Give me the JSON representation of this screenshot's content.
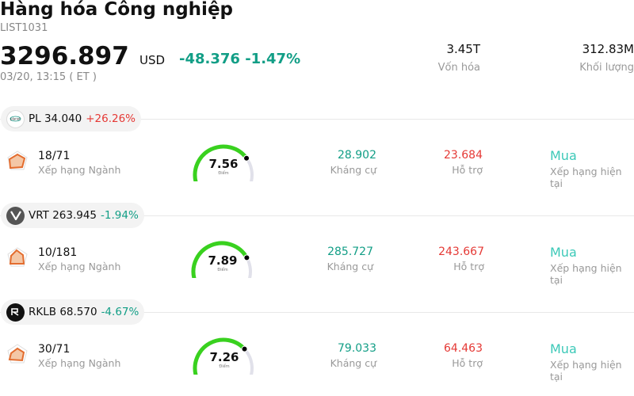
{
  "header": {
    "title": "Hàng hóa Công nghiệp",
    "code": "LIST1031",
    "price": "3296.897",
    "currency": "USD",
    "change": "-48.376 -1.47%",
    "timestamp": "03/20, 13:15  ( ET )",
    "market_cap_value": "3.45T",
    "market_cap_label": "Vốn hóa",
    "volume_value": "312.83M",
    "volume_label": "Khối lượng"
  },
  "colors": {
    "positive": "#e53935",
    "negative": "#129e86",
    "gauge_green": "#39d11f",
    "gauge_track": "#e1e1ea",
    "rating": "#3cc9b8"
  },
  "stocks": [
    {
      "ticker": "PL",
      "price": "34.040",
      "change_pct": "+26.26%",
      "direction": "up",
      "logo_icon": "planet-logo-icon",
      "rank": "18/71",
      "rank_label": "Xếp hạng Ngành",
      "score": "7.56",
      "score_label": "Điểm",
      "score_value": 7.56,
      "resistance": "28.902",
      "resistance_label": "Kháng cự",
      "support": "23.684",
      "support_label": "Hỗ trợ",
      "rating": "Mua",
      "rating_label": "Xếp hạng hiện tại"
    },
    {
      "ticker": "VRT",
      "price": "263.945",
      "change_pct": "-1.94%",
      "direction": "down",
      "logo_icon": "vertiv-logo-icon",
      "rank": "10/181",
      "rank_label": "Xếp hạng Ngành",
      "score": "7.89",
      "score_label": "Điểm",
      "score_value": 7.89,
      "resistance": "285.727",
      "resistance_label": "Kháng cự",
      "support": "243.667",
      "support_label": "Hỗ trợ",
      "rating": "Mua",
      "rating_label": "Xếp hạng hiện tại"
    },
    {
      "ticker": "RKLB",
      "price": "68.570",
      "change_pct": "-4.67%",
      "direction": "down",
      "logo_icon": "rocketlab-logo-icon",
      "rank": "30/71",
      "rank_label": "Xếp hạng Ngành",
      "score": "7.26",
      "score_label": "Điểm",
      "score_value": 7.26,
      "resistance": "79.033",
      "resistance_label": "Kháng cự",
      "support": "64.463",
      "support_label": "Hỗ trợ",
      "rating": "Mua",
      "rating_label": "Xếp hạng hiện tại"
    }
  ]
}
